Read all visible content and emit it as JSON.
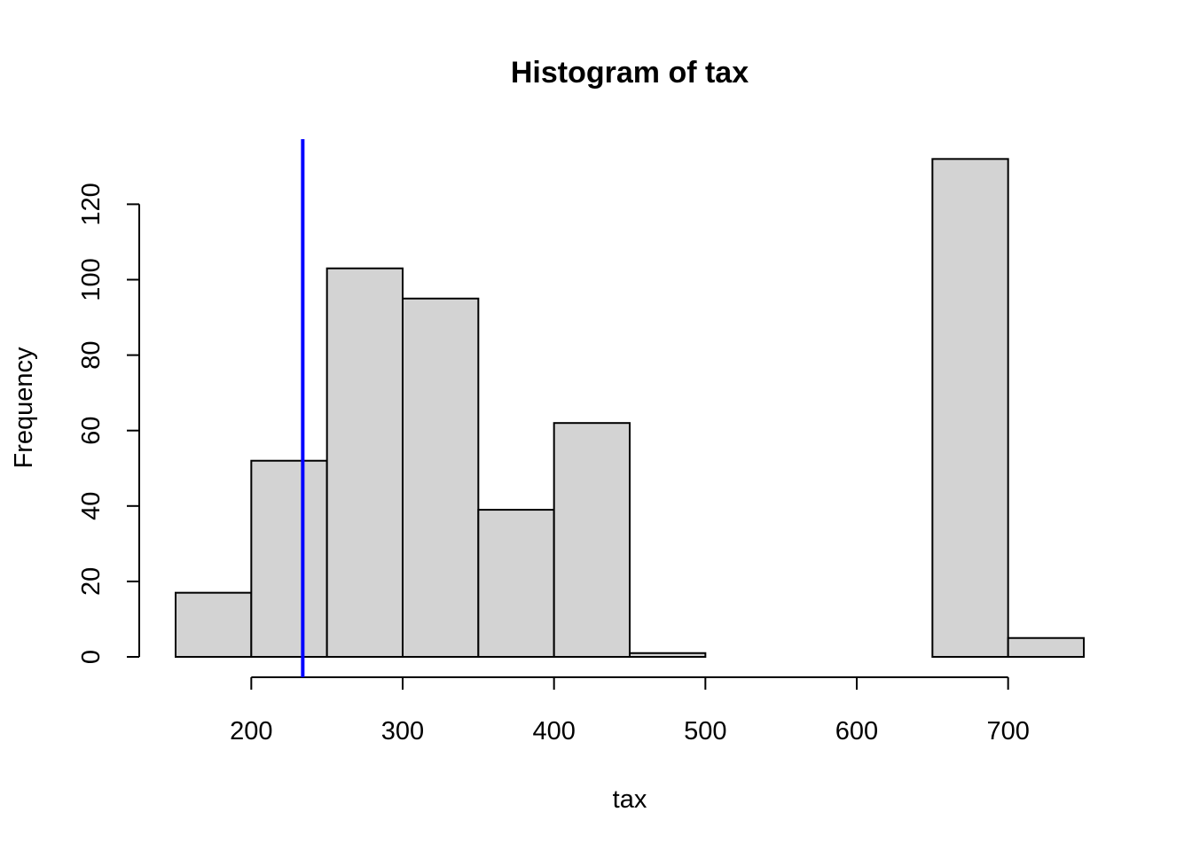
{
  "chart_data": {
    "type": "bar",
    "title": "Histogram of tax",
    "xlabel": "tax",
    "ylabel": "Frequency",
    "bins": [
      {
        "start": 150,
        "end": 200,
        "count": 17
      },
      {
        "start": 200,
        "end": 250,
        "count": 52
      },
      {
        "start": 250,
        "end": 300,
        "count": 103
      },
      {
        "start": 300,
        "end": 350,
        "count": 95
      },
      {
        "start": 350,
        "end": 400,
        "count": 39
      },
      {
        "start": 400,
        "end": 450,
        "count": 62
      },
      {
        "start": 450,
        "end": 500,
        "count": 1
      },
      {
        "start": 500,
        "end": 550,
        "count": 0
      },
      {
        "start": 550,
        "end": 600,
        "count": 0
      },
      {
        "start": 600,
        "end": 650,
        "count": 0
      },
      {
        "start": 650,
        "end": 700,
        "count": 132
      },
      {
        "start": 700,
        "end": 750,
        "count": 5
      }
    ],
    "x_ticks": [
      "200",
      "300",
      "400",
      "500",
      "600",
      "700"
    ],
    "y_ticks": [
      "0",
      "20",
      "40",
      "60",
      "80",
      "100",
      "120"
    ],
    "xlim": [
      150,
      750
    ],
    "ylim": [
      0,
      132
    ],
    "grid": false,
    "bar_color": "#d3d3d3",
    "reference_line": {
      "x": 234,
      "color": "#0000ff"
    }
  }
}
